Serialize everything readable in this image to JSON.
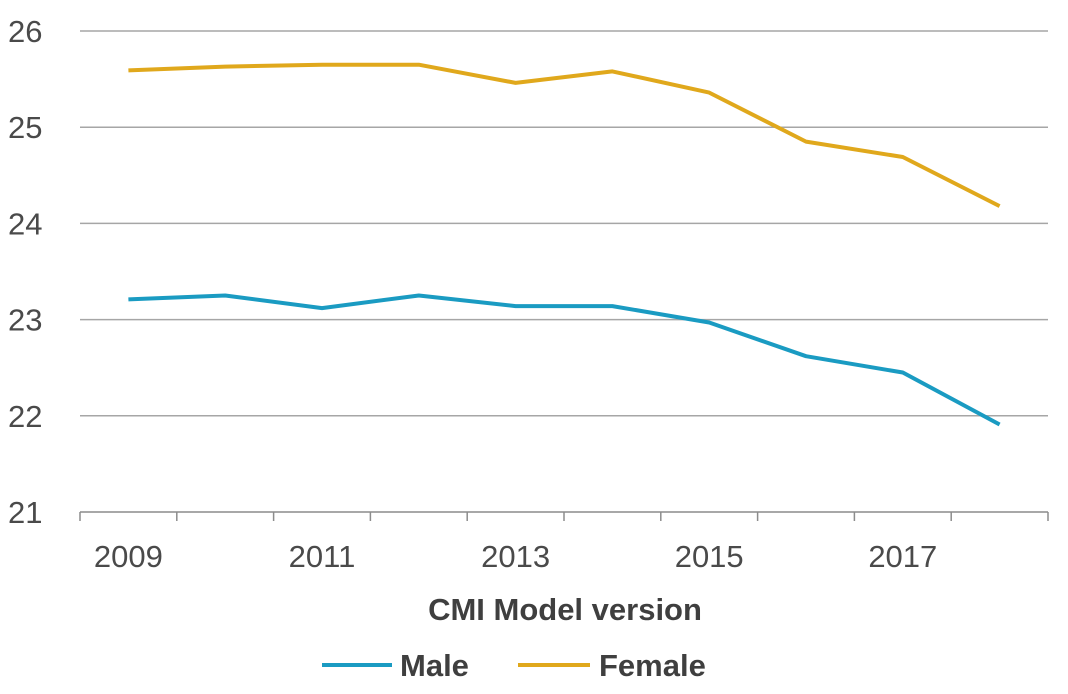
{
  "chart_data": {
    "type": "line",
    "title": "",
    "xlabel": "CMI Model version",
    "ylabel": "",
    "x": [
      2009,
      2010,
      2011,
      2012,
      2013,
      2014,
      2015,
      2016,
      2017,
      2018
    ],
    "x_tick_labels": [
      "2009",
      "2011",
      "2013",
      "2015",
      "2017"
    ],
    "y_ticks": [
      21,
      22,
      23,
      24,
      25,
      26
    ],
    "ylim": [
      21,
      26
    ],
    "grid": "horizontal",
    "legend_position": "bottom",
    "series": [
      {
        "name": "Male",
        "color": "#1a9bc2",
        "values": [
          23.21,
          23.25,
          23.12,
          23.25,
          23.14,
          23.14,
          22.97,
          22.62,
          22.45,
          21.91
        ]
      },
      {
        "name": "Female",
        "color": "#e0a81c",
        "values": [
          25.59,
          25.63,
          25.65,
          25.65,
          25.46,
          25.58,
          25.36,
          24.85,
          24.69,
          24.18
        ]
      }
    ]
  }
}
